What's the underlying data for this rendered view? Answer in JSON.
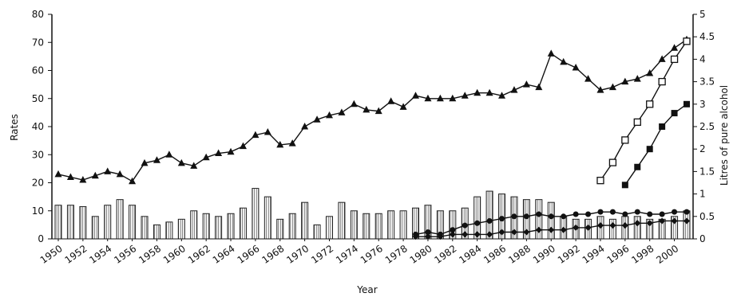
{
  "chart_data": {
    "type": "bar+line",
    "xlabel": "Year",
    "ylabel_left": "Rates",
    "ylabel_right": "Litres of pure alcohol",
    "ylim_left": [
      0,
      80
    ],
    "ylim_right": [
      0,
      5
    ],
    "left_ticks": [
      "0",
      "10",
      "20",
      "30",
      "40",
      "50",
      "60",
      "70",
      "80"
    ],
    "right_ticks": [
      "0",
      "0.5",
      "1",
      "1.5",
      "2",
      "2.5",
      "3",
      "3.5",
      "4",
      "4.5",
      "5"
    ],
    "x_ticks": [
      "1950",
      "1952",
      "1954",
      "1956",
      "1958",
      "1960",
      "1962",
      "1964",
      "1966",
      "1968",
      "1970",
      "1972",
      "1974",
      "1976",
      "1978",
      "1980",
      "1982",
      "1984",
      "1986",
      "1988",
      "1990",
      "1992",
      "1994",
      "1996",
      "1998",
      "2000"
    ],
    "years": [
      1950,
      1951,
      1952,
      1953,
      1954,
      1955,
      1956,
      1957,
      1958,
      1959,
      1960,
      1961,
      1962,
      1963,
      1964,
      1965,
      1966,
      1967,
      1968,
      1969,
      1970,
      1971,
      1972,
      1973,
      1974,
      1975,
      1976,
      1977,
      1978,
      1979,
      1980,
      1981,
      1982,
      1983,
      1984,
      1985,
      1986,
      1987,
      1988,
      1989,
      1990,
      1991,
      1992,
      1993,
      1994,
      1995,
      1996,
      1997,
      1998,
      1999,
      2000,
      2001
    ],
    "bars_rate": [
      12,
      12,
      11.5,
      8,
      12,
      14,
      12,
      8,
      5,
      6,
      7,
      10,
      9,
      8,
      9,
      11,
      18,
      15,
      7,
      9,
      13,
      5,
      8,
      13,
      10,
      9,
      9,
      10,
      10,
      11,
      12,
      10,
      10,
      11,
      15,
      17,
      16,
      15,
      14,
      14,
      13,
      8,
      7,
      7,
      8,
      7,
      8,
      8,
      7,
      7,
      8,
      10
    ],
    "series": [
      {
        "marker": "triangle",
        "axis": "left",
        "values": [
          23,
          22,
          21,
          22.5,
          24,
          23,
          20.5,
          27,
          28,
          30,
          27,
          26,
          29,
          30.5,
          31,
          33,
          37,
          38,
          33.5,
          34,
          40,
          42.5,
          44,
          45,
          48,
          46,
          45.5,
          49,
          47,
          51,
          50,
          50,
          50,
          51,
          52,
          52,
          51,
          53,
          55,
          54,
          66,
          63,
          61,
          57,
          53,
          54,
          56,
          57,
          59,
          64,
          68,
          71
        ]
      },
      {
        "marker": "open-square",
        "axis": "right",
        "values": [
          null,
          null,
          null,
          null,
          null,
          null,
          null,
          null,
          null,
          null,
          null,
          null,
          null,
          null,
          null,
          null,
          null,
          null,
          null,
          null,
          null,
          null,
          null,
          null,
          null,
          null,
          null,
          null,
          null,
          null,
          null,
          null,
          null,
          null,
          null,
          null,
          null,
          null,
          null,
          null,
          null,
          null,
          null,
          null,
          1.3,
          1.7,
          2.2,
          2.6,
          3.0,
          3.5,
          4.0,
          4.4
        ]
      },
      {
        "marker": "filled-square",
        "axis": "right",
        "values": [
          null,
          null,
          null,
          null,
          null,
          null,
          null,
          null,
          null,
          null,
          null,
          null,
          null,
          null,
          null,
          null,
          null,
          null,
          null,
          null,
          null,
          null,
          null,
          null,
          null,
          null,
          null,
          null,
          null,
          null,
          null,
          null,
          null,
          null,
          null,
          null,
          null,
          null,
          null,
          null,
          null,
          null,
          null,
          null,
          null,
          null,
          1.2,
          1.6,
          2.0,
          2.5,
          2.8,
          3.0
        ]
      },
      {
        "marker": "filled-circle",
        "axis": "right",
        "values": [
          null,
          null,
          null,
          null,
          null,
          null,
          null,
          null,
          null,
          null,
          null,
          null,
          null,
          null,
          null,
          null,
          null,
          null,
          null,
          null,
          null,
          null,
          null,
          null,
          null,
          null,
          null,
          null,
          null,
          0.1,
          0.15,
          0.1,
          0.2,
          0.3,
          0.35,
          0.4,
          0.45,
          0.5,
          0.5,
          0.55,
          0.5,
          0.5,
          0.55,
          0.55,
          0.6,
          0.6,
          0.55,
          0.6,
          0.55,
          0.55,
          0.6,
          0.6
        ]
      },
      {
        "marker": "filled-diamond",
        "axis": "right",
        "values": [
          null,
          null,
          null,
          null,
          null,
          null,
          null,
          null,
          null,
          null,
          null,
          null,
          null,
          null,
          null,
          null,
          null,
          null,
          null,
          null,
          null,
          null,
          null,
          null,
          null,
          null,
          null,
          null,
          null,
          0.05,
          0.05,
          0.05,
          0.1,
          0.1,
          0.1,
          0.1,
          0.15,
          0.15,
          0.15,
          0.2,
          0.2,
          0.2,
          0.25,
          0.25,
          0.3,
          0.3,
          0.3,
          0.35,
          0.35,
          0.4,
          0.4,
          0.4
        ]
      }
    ],
    "grid": false
  }
}
